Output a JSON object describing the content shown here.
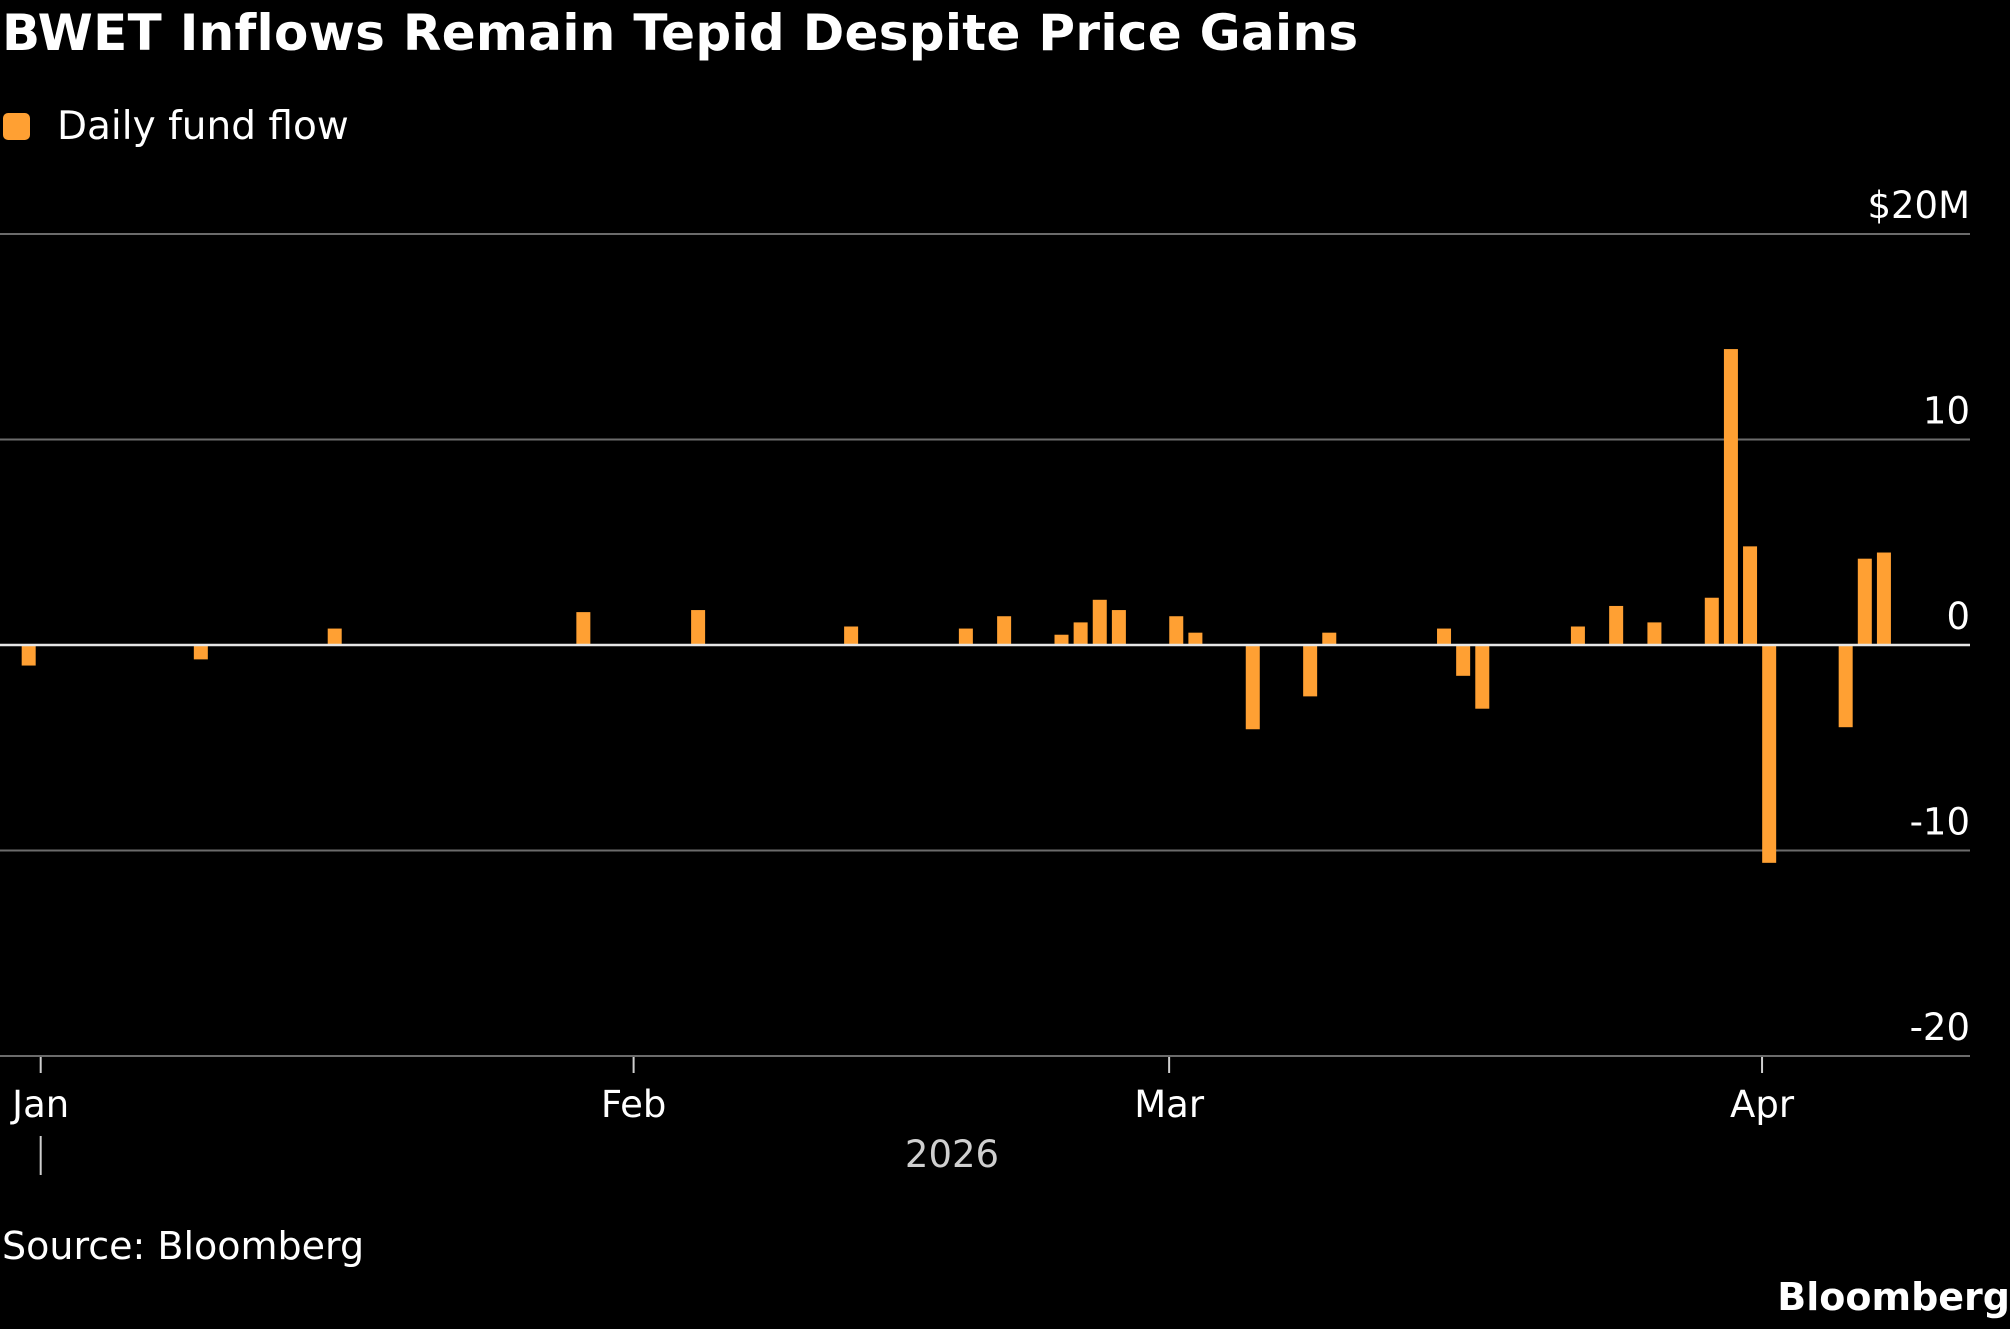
{
  "title": "BWET Inflows Remain Tepid Despite Price Gains",
  "legend": {
    "label": "Daily fund flow",
    "color": "#ffa033"
  },
  "source": "Source: Bloomberg",
  "brand": "Bloomberg",
  "chart_data": {
    "type": "bar",
    "title": "BWET Inflows Remain Tepid Despite Price Gains",
    "xlabel": "2026",
    "ylabel": "",
    "ylim": [
      -20,
      20
    ],
    "yticks": [
      {
        "value": 20,
        "label": "$20M"
      },
      {
        "value": 10,
        "label": "10"
      },
      {
        "value": 0,
        "label": "0"
      },
      {
        "value": -10,
        "label": "-10"
      },
      {
        "value": -20,
        "label": "-20"
      }
    ],
    "xlim": [
      "2025-12-31",
      "2026-04-13"
    ],
    "xticks": [
      {
        "date": "2026-01-01",
        "label": "Jan"
      },
      {
        "date": "2026-02-01",
        "label": "Feb"
      },
      {
        "date": "2026-03-01",
        "label": "Mar"
      },
      {
        "date": "2026-04-01",
        "label": "Apr"
      }
    ],
    "grid": true,
    "series": [
      {
        "name": "Daily fund flow",
        "color": "#ffa033",
        "points": [
          {
            "date": "2026-01-01",
            "value": -1.0
          },
          {
            "date": "2026-01-10",
            "value": -0.7
          },
          {
            "date": "2026-01-17",
            "value": 0.8
          },
          {
            "date": "2026-01-30",
            "value": 1.6
          },
          {
            "date": "2026-02-05",
            "value": 1.7
          },
          {
            "date": "2026-02-13",
            "value": 0.9
          },
          {
            "date": "2026-02-19",
            "value": 0.8
          },
          {
            "date": "2026-02-21",
            "value": 1.4
          },
          {
            "date": "2026-02-24",
            "value": 0.5
          },
          {
            "date": "2026-02-25",
            "value": 1.1
          },
          {
            "date": "2026-02-26",
            "value": 2.2
          },
          {
            "date": "2026-02-27",
            "value": 1.7
          },
          {
            "date": "2026-03-02",
            "value": 1.4
          },
          {
            "date": "2026-03-03",
            "value": 0.6
          },
          {
            "date": "2026-03-06",
            "value": -4.1
          },
          {
            "date": "2026-03-09",
            "value": -2.5
          },
          {
            "date": "2026-03-10",
            "value": 0.6
          },
          {
            "date": "2026-03-16",
            "value": 0.8
          },
          {
            "date": "2026-03-17",
            "value": -1.5
          },
          {
            "date": "2026-03-18",
            "value": -3.1
          },
          {
            "date": "2026-03-23",
            "value": 0.9
          },
          {
            "date": "2026-03-25",
            "value": 1.9
          },
          {
            "date": "2026-03-27",
            "value": 1.1
          },
          {
            "date": "2026-03-30",
            "value": 2.3
          },
          {
            "date": "2026-03-31",
            "value": 14.4
          },
          {
            "date": "2026-04-01",
            "value": 4.8
          },
          {
            "date": "2026-04-02",
            "value": -10.6
          },
          {
            "date": "2026-04-06",
            "value": -4.0
          },
          {
            "date": "2026-04-07",
            "value": 4.2
          },
          {
            "date": "2026-04-08",
            "value": 4.5
          }
        ]
      }
    ]
  }
}
